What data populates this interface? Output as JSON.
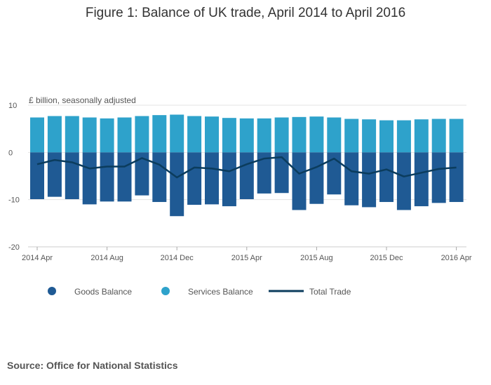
{
  "title": "Figure 1: Balance of UK trade, April 2014 to April 2016",
  "unit_label": "£ billion, seasonally adjusted",
  "source": "Source: Office for National Statistics",
  "colors": {
    "goods": "#1f5a94",
    "services": "#2ea2cb",
    "total": "#0b3c5d"
  },
  "chart_data": {
    "type": "bar",
    "x_tick_labels": [
      "2014 Apr",
      "2014 Aug",
      "2014 Dec",
      "2015 Apr",
      "2015 Aug",
      "2015 Dec",
      "2016 Apr"
    ],
    "months": [
      "2014 Apr",
      "2014 May",
      "2014 Jun",
      "2014 Jul",
      "2014 Aug",
      "2014 Sep",
      "2014 Oct",
      "2014 Nov",
      "2014 Dec",
      "2015 Jan",
      "2015 Feb",
      "2015 Mar",
      "2015 Apr",
      "2015 May",
      "2015 Jun",
      "2015 Jul",
      "2015 Aug",
      "2015 Sep",
      "2015 Oct",
      "2015 Nov",
      "2015 Dec",
      "2016 Jan",
      "2016 Feb",
      "2016 Mar",
      "2016 Apr"
    ],
    "ylim": [
      -20,
      10
    ],
    "y_ticks": [
      10,
      0,
      -10,
      -20
    ],
    "series": [
      {
        "name": "Goods Balance",
        "kind": "bar",
        "values": [
          -9.9,
          -9.4,
          -9.9,
          -11.0,
          -10.4,
          -10.4,
          -9.1,
          -10.5,
          -13.5,
          -11.1,
          -11.0,
          -11.4,
          -9.9,
          -8.7,
          -8.6,
          -12.2,
          -10.9,
          -8.9,
          -11.2,
          -11.6,
          -10.5,
          -12.2,
          -11.4,
          -10.7,
          -10.5
        ]
      },
      {
        "name": "Services Balance",
        "kind": "bar",
        "values": [
          7.4,
          7.7,
          7.7,
          7.4,
          7.2,
          7.4,
          7.7,
          7.9,
          8.0,
          7.7,
          7.6,
          7.3,
          7.2,
          7.2,
          7.4,
          7.5,
          7.6,
          7.4,
          7.1,
          7.0,
          6.8,
          6.8,
          7.0,
          7.1,
          7.1
        ]
      },
      {
        "name": "Total Trade",
        "kind": "line",
        "values": [
          -2.5,
          -1.6,
          -2.1,
          -3.4,
          -3.0,
          -3.0,
          -1.2,
          -2.6,
          -5.3,
          -3.2,
          -3.4,
          -4.0,
          -2.5,
          -1.3,
          -1.0,
          -4.5,
          -3.1,
          -1.3,
          -4.0,
          -4.5,
          -3.6,
          -5.1,
          -4.3,
          -3.5,
          -3.2
        ]
      }
    ]
  }
}
